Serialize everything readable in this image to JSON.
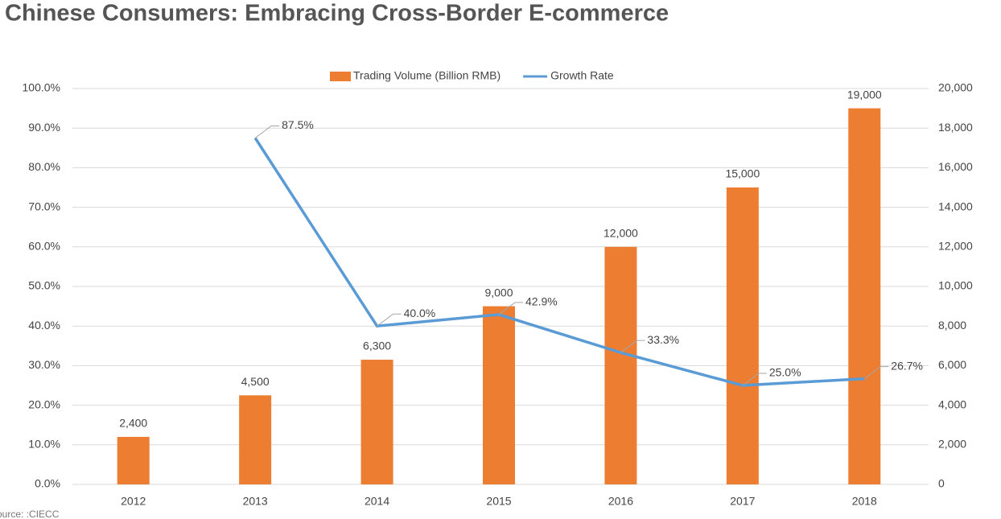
{
  "chart_data": {
    "type": "bar-line",
    "title": "Chinese Consumers: Embracing Cross-Border E-commerce",
    "source": "Source: :CIECC",
    "categories": [
      "2012",
      "2013",
      "2014",
      "2015",
      "2016",
      "2017",
      "2018"
    ],
    "series": [
      {
        "name": "Trading Volume (Billion RMB)",
        "type": "bar",
        "axis": "y2",
        "color": "#ed7d31",
        "values": [
          2400,
          4500,
          6300,
          9000,
          12000,
          15000,
          19000
        ],
        "value_labels": [
          "2,400",
          "4,500",
          "6,300",
          "9,000",
          "12,000",
          "15,000",
          "19,000"
        ]
      },
      {
        "name": "Growth Rate",
        "type": "line",
        "color": "#5b9bd5",
        "values": [
          null,
          87.5,
          40.0,
          42.9,
          33.3,
          25.0,
          26.7
        ],
        "value_labels": [
          null,
          "87.5%",
          "40.0%",
          "42.9%",
          "33.3%",
          "25.0%",
          "26.7%"
        ]
      }
    ],
    "ylim": [
      0,
      100
    ],
    "yticks": [
      {
        "value": 0,
        "label": "0.0%"
      },
      {
        "value": 10,
        "label": "10.0%"
      },
      {
        "value": 20,
        "label": "20.0%"
      },
      {
        "value": 30,
        "label": "30.0%"
      },
      {
        "value": 40,
        "label": "40.0%"
      },
      {
        "value": 50,
        "label": "50.0%"
      },
      {
        "value": 60,
        "label": "60.0%"
      },
      {
        "value": 70,
        "label": "70.0%"
      },
      {
        "value": 80,
        "label": "80.0%"
      },
      {
        "value": 90,
        "label": "90.0%"
      },
      {
        "value": 100,
        "label": "100.0%"
      }
    ],
    "y2lim": [
      0,
      20000
    ],
    "y2ticks": [
      0,
      {
        "value": 2000,
        "label": "2,000"
      },
      {
        "value": 4000,
        "label": "4,000"
      },
      {
        "value": 6000,
        "label": "6,000"
      },
      {
        "value": 8000,
        "label": "8,000"
      },
      {
        "value": 10000,
        "label": "10,000"
      },
      {
        "value": 12000,
        "label": "12,000"
      },
      {
        "value": 14000,
        "label": "14,000"
      },
      {
        "value": 16000,
        "label": "16,000"
      },
      {
        "value": 18000,
        "label": "18,000"
      },
      {
        "value": 20000,
        "label": "20,000"
      }
    ],
    "grid": true,
    "legend": "top"
  }
}
